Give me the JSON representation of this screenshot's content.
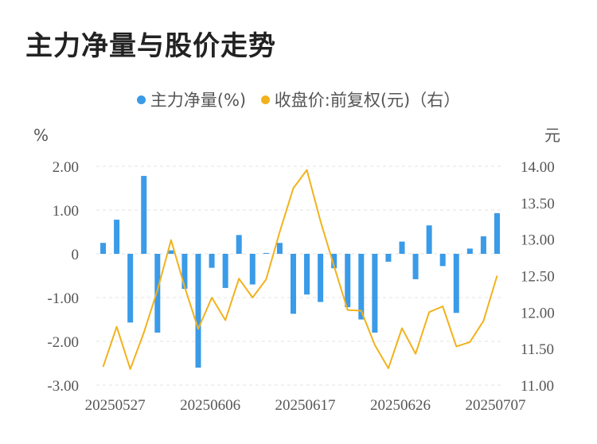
{
  "title": "主力净量与股价走势",
  "legend": {
    "series1": "主力净量(%)",
    "series2": "收盘价:前复权(元)（右）"
  },
  "colors": {
    "bar": "#3a9be8",
    "line": "#f2b21c",
    "grid": "#e3e3e3"
  },
  "chart_data": {
    "type": "bar+line",
    "title": "主力净量与股价走势",
    "left_unit": "%",
    "right_unit": "元",
    "left_ticks": [
      "2.00",
      "1.00",
      "0",
      "-1.00",
      "-2.00",
      "-3.00"
    ],
    "right_ticks": [
      "14.00",
      "13.50",
      "13.00",
      "12.50",
      "12.00",
      "11.50",
      "11.00"
    ],
    "ylim_left": [
      -3,
      2
    ],
    "ylim_right": [
      11,
      14
    ],
    "x_tick_labels": [
      "20250527",
      "20250606",
      "20250617",
      "20250626",
      "20250707"
    ],
    "x_tick_index": [
      1,
      8,
      15,
      22,
      29
    ],
    "grid": true,
    "legend_position": "top",
    "series": [
      {
        "name": "主力净量(%)",
        "type": "bar",
        "axis": "left",
        "values": [
          0.25,
          0.78,
          -1.57,
          1.78,
          -1.8,
          0.08,
          -0.8,
          -2.6,
          -0.32,
          -0.78,
          0.43,
          -0.7,
          0.02,
          0.25,
          -1.37,
          -0.93,
          -1.1,
          -0.33,
          -1.22,
          -1.5,
          -1.8,
          -0.18,
          0.28,
          -0.58,
          0.65,
          -0.28,
          -1.35,
          0.12,
          0.4,
          0.93
        ]
      },
      {
        "name": "收盘价:前复权(元)（右）",
        "type": "line",
        "axis": "right",
        "values": [
          11.25,
          11.8,
          11.22,
          11.72,
          12.3,
          12.99,
          12.35,
          11.77,
          12.2,
          11.89,
          12.46,
          12.2,
          12.45,
          13.1,
          13.7,
          13.95,
          13.25,
          12.63,
          12.03,
          12.02,
          11.55,
          11.23,
          11.78,
          11.43,
          12.0,
          12.08,
          11.53,
          11.59,
          11.88,
          12.5
        ]
      }
    ]
  }
}
